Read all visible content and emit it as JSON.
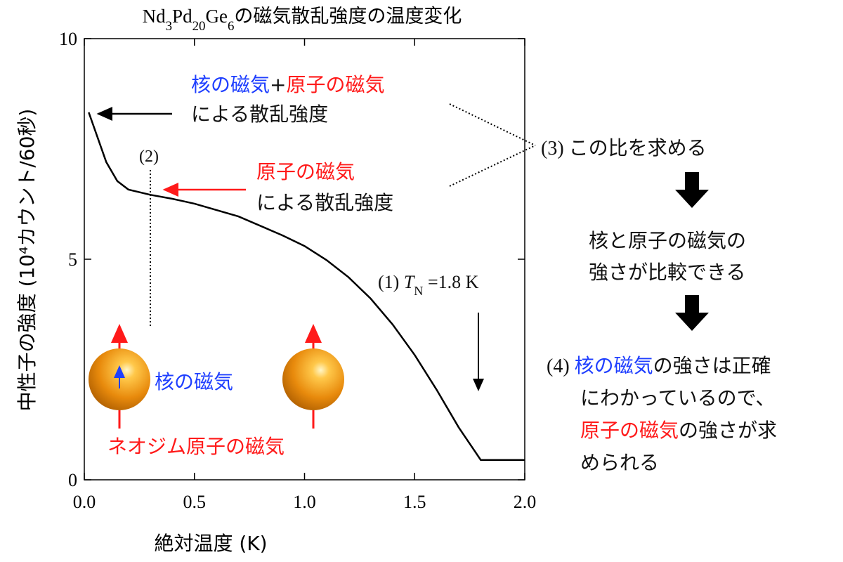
{
  "chart_data": {
    "type": "line",
    "title": [
      {
        "text": "Nd"
      },
      {
        "text": "3",
        "sub": true
      },
      {
        "text": "Pd"
      },
      {
        "text": "20",
        "sub": true
      },
      {
        "text": "Ge"
      },
      {
        "text": "6",
        "sub": true
      },
      {
        "text": "の磁気散乱強度の温度変化"
      }
    ],
    "x_label": "絶対温度 (K)",
    "y_label": "中性子の強度 (10⁴カウント/60秒)",
    "x": [
      0.02,
      0.1,
      0.15,
      0.2,
      0.3,
      0.4,
      0.5,
      0.7,
      0.9,
      1.0,
      1.1,
      1.2,
      1.3,
      1.4,
      1.5,
      1.6,
      1.7,
      1.8,
      2.0
    ],
    "values": [
      8.33,
      7.2,
      6.77,
      6.58,
      6.46,
      6.37,
      6.26,
      5.97,
      5.54,
      5.3,
      4.98,
      4.59,
      4.11,
      3.52,
      2.83,
      2.04,
      1.19,
      0.45,
      0.45
    ],
    "color": "#000000",
    "xlim": [
      0,
      2
    ],
    "ylim": [
      0,
      10
    ],
    "xticks": [
      {
        "value": 0,
        "label": "0.0"
      },
      0.5,
      {
        "value": 1,
        "label": "1.0"
      },
      1.5,
      {
        "value": 2,
        "label": "2.0"
      }
    ],
    "yticks": [
      0,
      5,
      10
    ],
    "annotations": [
      {
        "lines": [
          [
            {
              "text": "核の磁気",
              "color": "#1f3fff"
            },
            {
              "text": "+"
            },
            {
              "text": "原子の磁気",
              "color": "#ff1a1a"
            }
          ],
          [
            {
              "text": "による散乱強度"
            }
          ]
        ]
      },
      {
        "lines": [
          [
            {
              "text": "(2)",
              "serif": true
            }
          ]
        ]
      },
      {
        "lines": [
          [
            {
              "text": "原子の磁気",
              "color": "#ff1a1a"
            }
          ],
          [
            {
              "text": "による散乱強度"
            }
          ]
        ]
      },
      {
        "lines": [
          [
            {
              "text": "(1) ",
              "serif": true
            },
            {
              "text": "T",
              "serif": true,
              "italic": true
            },
            {
              "text": "N",
              "serif": true,
              "sub": true
            },
            {
              "text": " =1.8 K",
              "serif": true
            }
          ]
        ]
      },
      {
        "lines": [
          [
            {
              "text": "核の磁気",
              "color": "#1f3fff"
            }
          ]
        ]
      },
      {
        "lines": [
          [
            {
              "text": "ネオジム原子の磁気",
              "color": "#ff1a1a"
            }
          ]
        ]
      },
      {
        "lines": [
          [
            {
              "text": "(3) ",
              "serif": true
            },
            {
              "text": "この比を求める"
            }
          ]
        ]
      },
      {
        "lines": [
          [
            {
              "text": "核と原子の磁気の"
            }
          ],
          [
            {
              "text": "強さが比較できる"
            }
          ]
        ]
      },
      {
        "lines": [
          [
            {
              "text": "(4) ",
              "serif": true
            },
            {
              "text": "核の磁気",
              "color": "#1f3fff"
            },
            {
              "text": "の強さは正確"
            }
          ],
          [
            {
              "text": "にわかっているので、"
            }
          ],
          [
            {
              "text": "原子の磁気",
              "color": "#ff1a1a"
            },
            {
              "text": "の強さが求"
            }
          ],
          [
            {
              "text": "められる"
            }
          ]
        ]
      }
    ]
  }
}
